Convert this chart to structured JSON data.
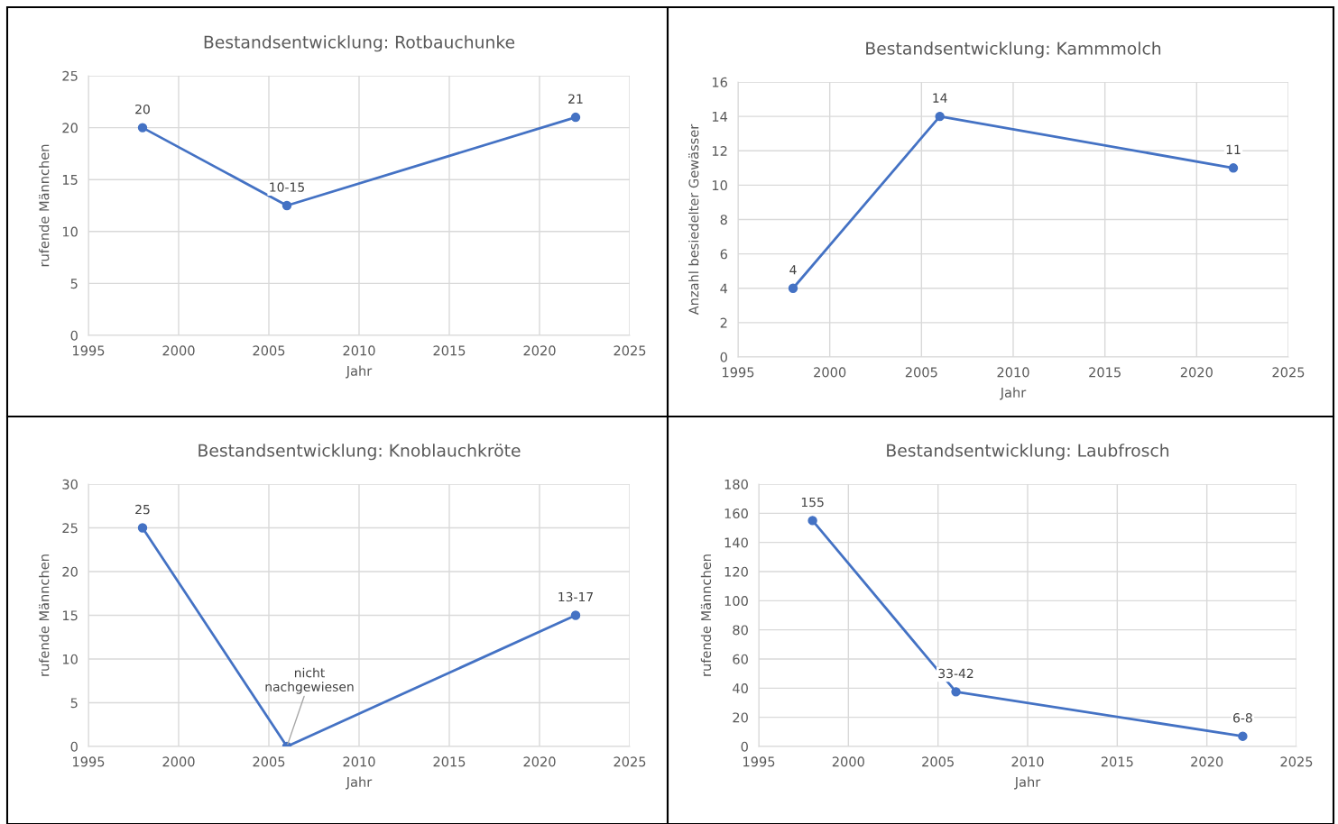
{
  "chart_data": [
    {
      "type": "line",
      "title": "Bestandsentwicklung: Rotbauchunke",
      "xlabel": "Jahr",
      "ylabel": "rufende Männchen",
      "x": [
        1998,
        2006,
        2022
      ],
      "series": [
        {
          "color": "#4472c4",
          "values": [
            20,
            12.5,
            21
          ],
          "value_labels": [
            "20",
            "10-15",
            "21"
          ]
        }
      ],
      "xlim": [
        1995,
        2025
      ],
      "xticks": [
        1995,
        2000,
        2005,
        2010,
        2015,
        2020,
        2025
      ],
      "ylim": [
        0,
        25
      ],
      "yticks": [
        0,
        5,
        10,
        15,
        20,
        25
      ],
      "grid": true,
      "marker": "circle",
      "line_style": "solid"
    },
    {
      "type": "line",
      "title": "Bestandsentwicklung: Kammmolch",
      "xlabel": "Jahr",
      "ylabel": "Anzahl besiedelter Gewässer",
      "x": [
        1998,
        2006,
        2022
      ],
      "series": [
        {
          "color": "#4472c4",
          "values": [
            4,
            14,
            11
          ]
        }
      ],
      "data_labels": true,
      "xlim": [
        1995,
        2025
      ],
      "xticks": [
        1995,
        2000,
        2005,
        2010,
        2015,
        2020,
        2025
      ],
      "ylim": [
        0,
        16
      ],
      "yticks": [
        0,
        2,
        4,
        6,
        8,
        10,
        12,
        14,
        16
      ],
      "grid": true,
      "marker": "circle",
      "line_style": "solid"
    },
    {
      "type": "line",
      "title": "Bestandsentwicklung: Knoblauchkröte",
      "xlabel": "Jahr",
      "ylabel": "rufende Männchen",
      "x": [
        1998,
        2006,
        2022
      ],
      "series": [
        {
          "color": "#4472c4",
          "values": [
            25,
            0,
            15
          ],
          "value_labels": [
            "25",
            "nicht\nnachgewiesen",
            "13-17"
          ]
        }
      ],
      "xlim": [
        1995,
        2025
      ],
      "xticks": [
        1995,
        2000,
        2005,
        2010,
        2015,
        2020,
        2025
      ],
      "ylim": [
        0,
        30
      ],
      "yticks": [
        0,
        5,
        10,
        15,
        20,
        25,
        30
      ],
      "grid": true,
      "marker": "circle",
      "line_style": "solid"
    },
    {
      "type": "line",
      "title": "Bestandsentwicklung: Laubfrosch",
      "xlabel": "Jahr",
      "ylabel": "rufende Männchen",
      "x": [
        1998,
        2006,
        2022
      ],
      "series": [
        {
          "color": "#4472c4",
          "values": [
            155,
            37.5,
            7
          ],
          "value_labels": [
            "155",
            "33-42",
            "6-8"
          ]
        }
      ],
      "xlim": [
        1995,
        2025
      ],
      "xticks": [
        1995,
        2000,
        2005,
        2010,
        2015,
        2020,
        2025
      ],
      "ylim": [
        0,
        180
      ],
      "yticks": [
        0,
        20,
        40,
        60,
        80,
        100,
        120,
        140,
        160,
        180
      ],
      "grid": true,
      "marker": "circle",
      "line_style": "solid"
    }
  ]
}
